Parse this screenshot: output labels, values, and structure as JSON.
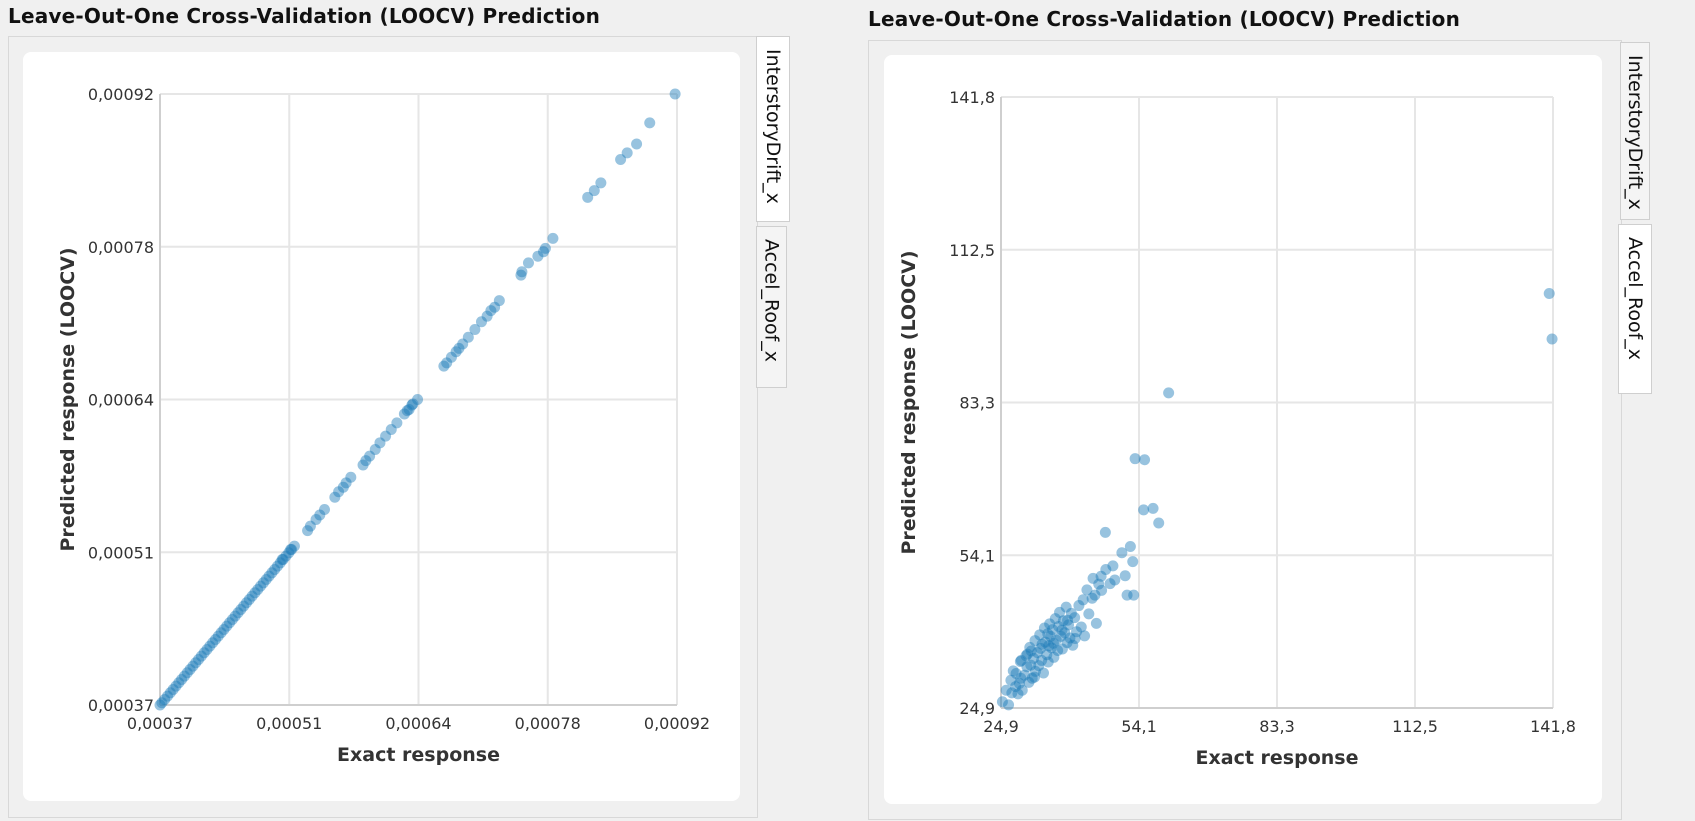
{
  "panels": [
    {
      "title": "Leave-Out-One Cross-Validation (LOOCV) Prediction",
      "tabs": [
        {
          "label": "InterstoryDrift_x",
          "active": true
        },
        {
          "label": "Accel_Roof_x",
          "active": false
        }
      ]
    },
    {
      "title": "Leave-Out-One Cross-Validation (LOOCV) Prediction",
      "tabs": [
        {
          "label": "InterstoryDrift_x",
          "active": false
        },
        {
          "label": "Accel_Roof_x",
          "active": true
        }
      ]
    }
  ],
  "colors": {
    "point": "#1a7ab8",
    "grid": "#e6e6e6",
    "axis": "#cfcfcf"
  },
  "chart_data": [
    {
      "type": "scatter",
      "title": "",
      "xlabel": "Exact response",
      "ylabel": "Predicted response (LOOCV)",
      "xlim": [
        0.00037,
        0.00092
      ],
      "ylim": [
        0.00037,
        0.00092
      ],
      "xticks": [
        "0,00037",
        "0,00051",
        "0,00064",
        "0,00078",
        "0,00092"
      ],
      "yticks": [
        "0,00037",
        "0,00051",
        "0,00064",
        "0,00078",
        "0,00092"
      ],
      "grid": true,
      "points": [
        [
          0.00037,
          0.00037
        ],
        [
          0.000372,
          0.000372
        ],
        [
          0.000375,
          0.000375
        ],
        [
          0.000378,
          0.000378
        ],
        [
          0.000381,
          0.000381
        ],
        [
          0.000384,
          0.000384
        ],
        [
          0.000387,
          0.000387
        ],
        [
          0.00039,
          0.00039
        ],
        [
          0.000393,
          0.000393
        ],
        [
          0.000396,
          0.000396
        ],
        [
          0.000399,
          0.000399
        ],
        [
          0.000402,
          0.000402
        ],
        [
          0.000405,
          0.000405
        ],
        [
          0.000408,
          0.000408
        ],
        [
          0.000411,
          0.000411
        ],
        [
          0.000414,
          0.000414
        ],
        [
          0.000417,
          0.000417
        ],
        [
          0.00042,
          0.00042
        ],
        [
          0.000423,
          0.000423
        ],
        [
          0.000426,
          0.000426
        ],
        [
          0.000429,
          0.000429
        ],
        [
          0.000432,
          0.000432
        ],
        [
          0.000435,
          0.000435
        ],
        [
          0.000438,
          0.000438
        ],
        [
          0.000441,
          0.000441
        ],
        [
          0.000444,
          0.000444
        ],
        [
          0.000447,
          0.000447
        ],
        [
          0.00045,
          0.00045
        ],
        [
          0.000453,
          0.000453
        ],
        [
          0.000456,
          0.000456
        ],
        [
          0.000459,
          0.000459
        ],
        [
          0.000462,
          0.000462
        ],
        [
          0.000465,
          0.000465
        ],
        [
          0.000468,
          0.000468
        ],
        [
          0.000471,
          0.000471
        ],
        [
          0.000474,
          0.000474
        ],
        [
          0.000477,
          0.000477
        ],
        [
          0.00048,
          0.00048
        ],
        [
          0.000483,
          0.000483
        ],
        [
          0.000486,
          0.000486
        ],
        [
          0.000489,
          0.000489
        ],
        [
          0.000492,
          0.000492
        ],
        [
          0.000495,
          0.000495
        ],
        [
          0.000498,
          0.000498
        ],
        [
          0.000501,
          0.000501
        ],
        [
          0.000504,
          0.000504
        ],
        [
          0.000507,
          0.000507
        ],
        [
          0.00051,
          0.00051
        ],
        [
          0.000513,
          0.000513
        ],
        [
          0.0005,
          0.000501
        ],
        [
          0.000509,
          0.00051
        ],
        [
          0.000527,
          0.000527
        ],
        [
          0.00053,
          0.000531
        ],
        [
          0.000536,
          0.000537
        ],
        [
          0.00054,
          0.000541
        ],
        [
          0.000545,
          0.000546
        ],
        [
          0.000556,
          0.000557
        ],
        [
          0.00056,
          0.000562
        ],
        [
          0.000565,
          0.000566
        ],
        [
          0.000568,
          0.00057
        ],
        [
          0.000573,
          0.000575
        ],
        [
          0.000586,
          0.000586
        ],
        [
          0.000589,
          0.00059
        ],
        [
          0.000593,
          0.000594
        ],
        [
          0.000599,
          0.0006
        ],
        [
          0.000604,
          0.000606
        ],
        [
          0.00061,
          0.000612
        ],
        [
          0.000616,
          0.000618
        ],
        [
          0.000622,
          0.000624
        ],
        [
          0.00063,
          0.000632
        ],
        [
          0.000633,
          0.000635
        ],
        [
          0.000635,
          0.000636
        ],
        [
          0.000638,
          0.00064
        ],
        [
          0.000639,
          0.000641
        ],
        [
          0.000644,
          0.000645
        ],
        [
          0.000672,
          0.000675
        ],
        [
          0.000675,
          0.000678
        ],
        [
          0.00068,
          0.000683
        ],
        [
          0.000685,
          0.000688
        ],
        [
          0.000688,
          0.000691
        ],
        [
          0.000692,
          0.000695
        ],
        [
          0.000698,
          0.000701
        ],
        [
          0.000705,
          0.000708
        ],
        [
          0.000712,
          0.000715
        ],
        [
          0.000718,
          0.00072
        ],
        [
          0.000722,
          0.000725
        ],
        [
          0.000726,
          0.000728
        ],
        [
          0.000731,
          0.000734
        ],
        [
          0.000754,
          0.000757
        ],
        [
          0.000755,
          0.00076
        ],
        [
          0.000762,
          0.000768
        ],
        [
          0.000772,
          0.000774
        ],
        [
          0.000778,
          0.000778
        ],
        [
          0.00078,
          0.000781
        ],
        [
          0.000788,
          0.00079
        ],
        [
          0.000825,
          0.000827
        ],
        [
          0.000832,
          0.000833
        ],
        [
          0.000839,
          0.00084
        ],
        [
          0.00086,
          0.000861
        ],
        [
          0.000867,
          0.000867
        ],
        [
          0.000877,
          0.000875
        ],
        [
          0.000891,
          0.000894
        ],
        [
          0.000918,
          0.00092
        ]
      ]
    },
    {
      "type": "scatter",
      "title": "",
      "xlabel": "Exact response",
      "ylabel": "Predicted response (LOOCV)",
      "xlim": [
        24.9,
        141.8
      ],
      "ylim": [
        24.9,
        141.8
      ],
      "xticks": [
        "24,9",
        "54,1",
        "83,3",
        "112,5",
        "141,8"
      ],
      "yticks": [
        "24,9",
        "54,1",
        "83,3",
        "112,5",
        "141,8"
      ],
      "grid": true,
      "points": [
        [
          25.2,
          26.1
        ],
        [
          26.0,
          28.3
        ],
        [
          26.5,
          25.5
        ],
        [
          27.0,
          30.2
        ],
        [
          27.2,
          27.8
        ],
        [
          28.0,
          29.0
        ],
        [
          28.1,
          31.5
        ],
        [
          28.5,
          27.6
        ],
        [
          29.0,
          33.8
        ],
        [
          29.1,
          30.6
        ],
        [
          29.4,
          28.3
        ],
        [
          29.9,
          31.2
        ],
        [
          30.2,
          34.9
        ],
        [
          30.4,
          32.8
        ],
        [
          30.8,
          29.8
        ],
        [
          31.0,
          36.5
        ],
        [
          31.2,
          33.1
        ],
        [
          31.5,
          30.6
        ],
        [
          31.8,
          34.4
        ],
        [
          32.1,
          37.8
        ],
        [
          32.2,
          31.9
        ],
        [
          32.6,
          35.5
        ],
        [
          32.9,
          33.0
        ],
        [
          33.1,
          38.9
        ],
        [
          33.3,
          36.3
        ],
        [
          33.5,
          34.0
        ],
        [
          33.9,
          31.6
        ],
        [
          34.1,
          40.2
        ],
        [
          34.3,
          37.5
        ],
        [
          34.6,
          35.1
        ],
        [
          34.9,
          33.7
        ],
        [
          35.2,
          41.0
        ],
        [
          35.4,
          38.6
        ],
        [
          35.6,
          36.4
        ],
        [
          35.8,
          39.9
        ],
        [
          36.1,
          34.6
        ],
        [
          36.4,
          42.0
        ],
        [
          36.6,
          37.9
        ],
        [
          36.9,
          35.9
        ],
        [
          37.1,
          40.5
        ],
        [
          37.3,
          43.2
        ],
        [
          37.6,
          38.6
        ],
        [
          37.9,
          36.2
        ],
        [
          38.1,
          41.6
        ],
        [
          38.4,
          39.3
        ],
        [
          38.7,
          44.2
        ],
        [
          38.9,
          37.4
        ],
        [
          39.2,
          40.8
        ],
        [
          39.5,
          38.3
        ],
        [
          39.8,
          43.0
        ],
        [
          40.1,
          36.9
        ],
        [
          40.5,
          42.2
        ],
        [
          40.9,
          39.5
        ],
        [
          41.4,
          44.5
        ],
        [
          41.9,
          40.4
        ],
        [
          42.3,
          45.6
        ],
        [
          42.6,
          38.7
        ],
        [
          43.1,
          47.5
        ],
        [
          43.5,
          42.9
        ],
        [
          44.2,
          45.9
        ],
        [
          44.4,
          49.7
        ],
        [
          44.8,
          46.5
        ],
        [
          45.1,
          41.1
        ],
        [
          45.6,
          48.6
        ],
        [
          46.1,
          50.1
        ],
        [
          46.2,
          47.4
        ],
        [
          47.0,
          58.5
        ],
        [
          47.1,
          51.4
        ],
        [
          48.0,
          48.7
        ],
        [
          48.6,
          52.1
        ],
        [
          49.0,
          49.4
        ],
        [
          50.5,
          54.6
        ],
        [
          51.2,
          50.2
        ],
        [
          51.6,
          46.5
        ],
        [
          52.3,
          55.8
        ],
        [
          52.8,
          52.9
        ],
        [
          53.0,
          46.5
        ],
        [
          53.3,
          72.6
        ],
        [
          55.1,
          62.8
        ],
        [
          55.3,
          72.4
        ],
        [
          57.1,
          63.1
        ],
        [
          58.3,
          60.3
        ],
        [
          60.4,
          85.2
        ],
        [
          29.2,
          34.0
        ],
        [
          30.5,
          35.2
        ],
        [
          32.0,
          30.8
        ],
        [
          33.6,
          37.1
        ],
        [
          34.8,
          39.1
        ],
        [
          36.0,
          37.3
        ],
        [
          37.8,
          39.8
        ],
        [
          39.0,
          41.7
        ],
        [
          40.6,
          38.2
        ],
        [
          27.5,
          32.0
        ],
        [
          28.8,
          29.6
        ],
        [
          31.3,
          35.8
        ],
        [
          35.0,
          36.8
        ],
        [
          141.0,
          104.2
        ],
        [
          141.6,
          95.5
        ]
      ]
    }
  ]
}
